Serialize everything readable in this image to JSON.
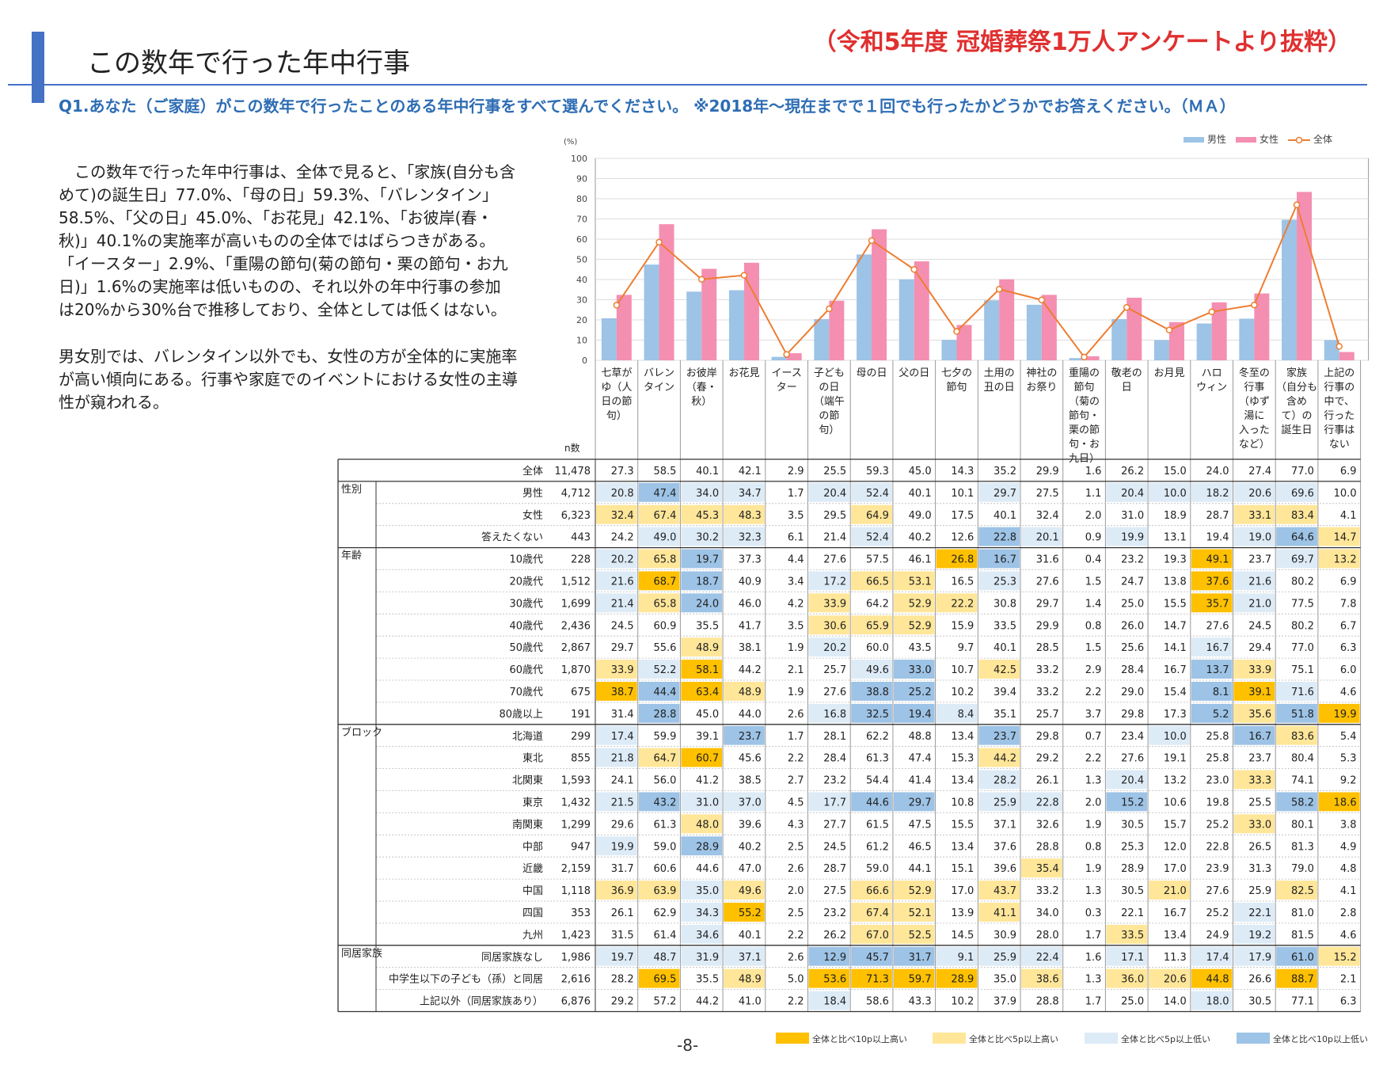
{
  "page": {
    "title": "この数年で行った年中行事",
    "source": "（令和5年度 冠婚葬祭1万人アンケートより抜粋）",
    "question": "Q1.あなた（ご家庭）がこの数年で行ったことのある年中行事をすべて選んでください。 ※2018年～現在までで１回でも行ったかどうかでお答えください。（ＭＡ）",
    "page_number": "-8-"
  },
  "body": {
    "paragraph1_lines": [
      "この数年で行った年中行事は、全体で見ると、「家族(自分も含",
      "めて)の誕生日」77.0%、「母の日」59.3%、「バレンタイン」",
      "58.5%、「父の日」45.0%、「お花見」42.1%、「お彼岸(春・",
      "秋)」40.1%の実施率が高いものの全体ではばらつきがある。",
      "「イースター」2.9%、「重陽の節句(菊の節句・栗の節句・お九",
      "日)」1.6%の実施率は低いものの、それ以外の年中行事の参加",
      "は20%から30%台で推移しており、全体としては低くはない。"
    ],
    "paragraph2_lines": [
      "男女別では、バレンタイン以外でも、女性の方が全体的に実施率",
      "が高い傾向にある。行事や家庭でのイベントにおける女性の主導",
      "性が窺われる。"
    ]
  },
  "colors": {
    "male": "#9dc3e6",
    "female": "#f48fb1",
    "total": "#ed7d31",
    "high10": "#ffc000",
    "high5": "#ffe699",
    "low5": "#ddebf7",
    "low10": "#9dc3e6",
    "accent": "#4472c4"
  },
  "chart_data": {
    "type": "bar",
    "unit": "(%)",
    "ylim": [
      0,
      100
    ],
    "yticks": [
      "0",
      "10",
      "20",
      "30",
      "40",
      "50",
      "60",
      "70",
      "80",
      "90",
      "100"
    ],
    "categories": [
      "七草がゆ（人日の節句）",
      "バレンタイン",
      "お彼岸（春・秋）",
      "お花見",
      "イースター",
      "子どもの日（端午の節句）",
      "母の日",
      "父の日",
      "七夕の節句",
      "土用の丑の日",
      "神社のお祭り",
      "重陽の節句（菊の節句・栗の節句・お九日）",
      "敬老の日",
      "お月見",
      "ハロウィン",
      "冬至の行事（ゆず湯に入ったなど）",
      "家族（自分も含めて）の誕生日",
      "上記の行事の中で、行った行事はない"
    ],
    "category_lines": [
      [
        "七草が",
        "ゆ（人",
        "日の節",
        "句）"
      ],
      [
        "バレン",
        "タイン"
      ],
      [
        "お彼岸",
        "（春・",
        "秋）"
      ],
      [
        "お花見"
      ],
      [
        "イース",
        "ター"
      ],
      [
        "子ども",
        "の日",
        "（端午",
        "の節",
        "句）"
      ],
      [
        "母の日"
      ],
      [
        "父の日"
      ],
      [
        "七夕の",
        "節句"
      ],
      [
        "土用の",
        "丑の日"
      ],
      [
        "神社の",
        "お祭り"
      ],
      [
        "重陽の",
        "節句",
        "（菊の",
        "節句・",
        "栗の節",
        "句・お",
        "九日）"
      ],
      [
        "敬老の",
        "日"
      ],
      [
        "お月見"
      ],
      [
        "ハロ",
        "ウィン"
      ],
      [
        "冬至の",
        "行事",
        "（ゆず",
        "湯に",
        "入った",
        "など）"
      ],
      [
        "家族",
        "（自分も",
        "含め",
        "て）の",
        "誕生日"
      ],
      [
        "上記の",
        "行事の",
        "中で、",
        "行った",
        "行事は",
        "ない"
      ]
    ],
    "series": [
      {
        "name": "男性",
        "type": "bar",
        "values": [
          20.8,
          47.4,
          34.0,
          34.7,
          1.7,
          20.4,
          52.4,
          40.1,
          10.1,
          29.7,
          27.5,
          1.1,
          20.4,
          10.0,
          18.2,
          20.6,
          69.6,
          10.0
        ]
      },
      {
        "name": "女性",
        "type": "bar",
        "values": [
          32.4,
          67.4,
          45.3,
          48.3,
          3.5,
          29.5,
          64.9,
          49.0,
          17.5,
          40.1,
          32.4,
          2.0,
          31.0,
          18.9,
          28.7,
          33.1,
          83.4,
          4.1
        ]
      },
      {
        "name": "全体",
        "type": "line",
        "values": [
          27.3,
          58.5,
          40.1,
          42.1,
          2.9,
          25.5,
          59.3,
          45.0,
          14.3,
          35.2,
          29.9,
          1.6,
          26.2,
          15.0,
          24.0,
          27.4,
          77.0,
          6.9
        ]
      }
    ],
    "n_label": "n数",
    "table": {
      "rows": [
        {
          "group": "",
          "label": "全体",
          "n": "11,478",
          "values": [
            27.3,
            58.5,
            40.1,
            42.1,
            2.9,
            25.5,
            59.3,
            45.0,
            14.3,
            35.2,
            29.9,
            1.6,
            26.2,
            15.0,
            24.0,
            27.4,
            77.0,
            6.9
          ]
        },
        {
          "group": "性別",
          "label": "男性",
          "n": "4,712",
          "values": [
            20.8,
            47.4,
            34.0,
            34.7,
            1.7,
            20.4,
            52.4,
            40.1,
            10.1,
            29.7,
            27.5,
            1.1,
            20.4,
            10.0,
            18.2,
            20.6,
            69.6,
            10.0
          ]
        },
        {
          "group": "",
          "label": "女性",
          "n": "6,323",
          "values": [
            32.4,
            67.4,
            45.3,
            48.3,
            3.5,
            29.5,
            64.9,
            49.0,
            17.5,
            40.1,
            32.4,
            2.0,
            31.0,
            18.9,
            28.7,
            33.1,
            83.4,
            4.1
          ]
        },
        {
          "group": "",
          "label": "答えたくない",
          "n": "443",
          "values": [
            24.2,
            49.0,
            30.2,
            32.3,
            6.1,
            21.4,
            52.4,
            40.2,
            12.6,
            22.8,
            20.1,
            0.9,
            19.9,
            13.1,
            19.4,
            19.0,
            64.6,
            14.7
          ]
        },
        {
          "group": "年齢",
          "label": "10歳代",
          "n": "228",
          "values": [
            20.2,
            65.8,
            19.7,
            37.3,
            4.4,
            27.6,
            57.5,
            46.1,
            26.8,
            16.7,
            31.6,
            0.4,
            23.2,
            19.3,
            49.1,
            23.7,
            69.7,
            13.2
          ]
        },
        {
          "group": "",
          "label": "20歳代",
          "n": "1,512",
          "values": [
            21.6,
            68.7,
            18.7,
            40.9,
            3.4,
            17.2,
            66.5,
            53.1,
            16.5,
            25.3,
            27.6,
            1.5,
            24.7,
            13.8,
            37.6,
            21.6,
            80.2,
            6.9
          ]
        },
        {
          "group": "",
          "label": "30歳代",
          "n": "1,699",
          "values": [
            21.4,
            65.8,
            24.0,
            46.0,
            4.2,
            33.9,
            64.2,
            52.9,
            22.2,
            30.8,
            29.7,
            1.4,
            25.0,
            15.5,
            35.7,
            21.0,
            77.5,
            7.8
          ]
        },
        {
          "group": "",
          "label": "40歳代",
          "n": "2,436",
          "values": [
            24.5,
            60.9,
            35.5,
            41.7,
            3.5,
            30.6,
            65.9,
            52.9,
            15.9,
            33.5,
            29.9,
            0.8,
            26.0,
            14.7,
            27.6,
            24.5,
            80.2,
            6.7
          ]
        },
        {
          "group": "",
          "label": "50歳代",
          "n": "2,867",
          "values": [
            29.7,
            55.6,
            48.9,
            38.1,
            1.9,
            20.2,
            60.0,
            43.5,
            9.7,
            40.1,
            28.5,
            1.5,
            25.6,
            14.1,
            16.7,
            29.4,
            77.0,
            6.3
          ]
        },
        {
          "group": "",
          "label": "60歳代",
          "n": "1,870",
          "values": [
            33.9,
            52.2,
            58.1,
            44.2,
            2.1,
            25.7,
            49.6,
            33.0,
            10.7,
            42.5,
            33.2,
            2.9,
            28.4,
            16.7,
            13.7,
            33.9,
            75.1,
            6.0
          ]
        },
        {
          "group": "",
          "label": "70歳代",
          "n": "675",
          "values": [
            38.7,
            44.4,
            63.4,
            48.9,
            1.9,
            27.6,
            38.8,
            25.2,
            10.2,
            39.4,
            33.2,
            2.2,
            29.0,
            15.4,
            8.1,
            39.1,
            71.6,
            4.6
          ]
        },
        {
          "group": "",
          "label": "80歳以上",
          "n": "191",
          "values": [
            31.4,
            28.8,
            45.0,
            44.0,
            2.6,
            16.8,
            32.5,
            19.4,
            8.4,
            35.1,
            25.7,
            3.7,
            29.8,
            17.3,
            5.2,
            35.6,
            51.8,
            19.9
          ]
        },
        {
          "group": "ブロック",
          "label": "北海道",
          "n": "299",
          "values": [
            17.4,
            59.9,
            39.1,
            23.7,
            1.7,
            28.1,
            62.2,
            48.8,
            13.4,
            23.7,
            29.8,
            0.7,
            23.4,
            10.0,
            25.8,
            16.7,
            83.6,
            5.4
          ]
        },
        {
          "group": "",
          "label": "東北",
          "n": "855",
          "values": [
            21.8,
            64.7,
            60.7,
            45.6,
            2.2,
            28.4,
            61.3,
            47.4,
            15.3,
            44.2,
            29.2,
            2.2,
            27.6,
            19.1,
            25.8,
            23.7,
            80.4,
            5.3
          ]
        },
        {
          "group": "",
          "label": "北関東",
          "n": "1,593",
          "values": [
            24.1,
            56.0,
            41.2,
            38.5,
            2.7,
            23.2,
            54.4,
            41.4,
            13.4,
            28.2,
            26.1,
            1.3,
            20.4,
            13.2,
            23.0,
            33.3,
            74.1,
            9.2
          ]
        },
        {
          "group": "",
          "label": "東京",
          "n": "1,432",
          "values": [
            21.5,
            43.2,
            31.0,
            37.0,
            4.5,
            17.7,
            44.6,
            29.7,
            10.8,
            25.9,
            22.8,
            2.0,
            15.2,
            10.6,
            19.8,
            25.5,
            58.2,
            18.6
          ]
        },
        {
          "group": "",
          "label": "南関東",
          "n": "1,299",
          "values": [
            29.6,
            61.3,
            48.0,
            39.6,
            4.3,
            27.7,
            61.5,
            47.5,
            15.5,
            37.1,
            32.6,
            1.9,
            30.5,
            15.7,
            25.2,
            33.0,
            80.1,
            3.8
          ]
        },
        {
          "group": "",
          "label": "中部",
          "n": "947",
          "values": [
            19.9,
            59.0,
            28.9,
            40.2,
            2.5,
            24.5,
            61.2,
            46.5,
            13.4,
            37.6,
            28.8,
            0.8,
            25.3,
            12.0,
            22.8,
            26.5,
            81.3,
            4.9
          ]
        },
        {
          "group": "",
          "label": "近畿",
          "n": "2,159",
          "values": [
            31.7,
            60.6,
            44.6,
            47.0,
            2.6,
            28.7,
            59.0,
            44.1,
            15.1,
            39.6,
            35.4,
            1.9,
            28.9,
            17.0,
            23.9,
            31.3,
            79.0,
            4.8
          ]
        },
        {
          "group": "",
          "label": "中国",
          "n": "1,118",
          "values": [
            36.9,
            63.9,
            35.0,
            49.6,
            2.0,
            27.5,
            66.6,
            52.9,
            17.0,
            43.7,
            33.2,
            1.3,
            30.5,
            21.0,
            27.6,
            25.9,
            82.5,
            4.1
          ]
        },
        {
          "group": "",
          "label": "四国",
          "n": "353",
          "values": [
            26.1,
            62.9,
            34.3,
            55.2,
            2.5,
            23.2,
            67.4,
            52.1,
            13.9,
            41.1,
            34.0,
            0.3,
            22.1,
            16.7,
            25.2,
            22.1,
            81.0,
            2.8
          ]
        },
        {
          "group": "",
          "label": "九州",
          "n": "1,423",
          "values": [
            31.5,
            61.4,
            34.6,
            40.1,
            2.2,
            26.2,
            67.0,
            52.5,
            14.5,
            30.9,
            28.0,
            1.7,
            33.5,
            13.4,
            24.9,
            19.2,
            81.5,
            4.6
          ]
        },
        {
          "group": "同居家族",
          "label": "同居家族なし",
          "n": "1,986",
          "values": [
            19.7,
            48.7,
            31.9,
            37.1,
            2.6,
            12.9,
            45.7,
            31.7,
            9.1,
            25.9,
            22.4,
            1.6,
            17.1,
            11.3,
            17.4,
            17.9,
            61.0,
            15.2
          ]
        },
        {
          "group": "",
          "label": "中学生以下の子ども（孫）と同居",
          "n": "2,616",
          "values": [
            28.2,
            69.5,
            35.5,
            48.9,
            5.0,
            53.6,
            71.3,
            59.7,
            28.9,
            35.0,
            38.6,
            1.3,
            36.0,
            20.6,
            44.8,
            26.6,
            88.7,
            2.1
          ]
        },
        {
          "group": "",
          "label": "上記以外（同居家族あり）",
          "n": "6,876",
          "values": [
            29.2,
            57.2,
            44.2,
            41.0,
            2.2,
            18.4,
            58.6,
            43.3,
            10.2,
            37.9,
            28.8,
            1.7,
            25.0,
            14.0,
            18.0,
            30.5,
            77.1,
            6.3
          ]
        }
      ]
    },
    "highlight_legend": [
      {
        "key": "high10",
        "label": "全体と比べ10p以上高い"
      },
      {
        "key": "high5",
        "label": "全体と比べ5p以上高い"
      },
      {
        "key": "low5",
        "label": "全体と比べ5p以上低い"
      },
      {
        "key": "low10",
        "label": "全体と比べ10p以上低い"
      }
    ]
  }
}
